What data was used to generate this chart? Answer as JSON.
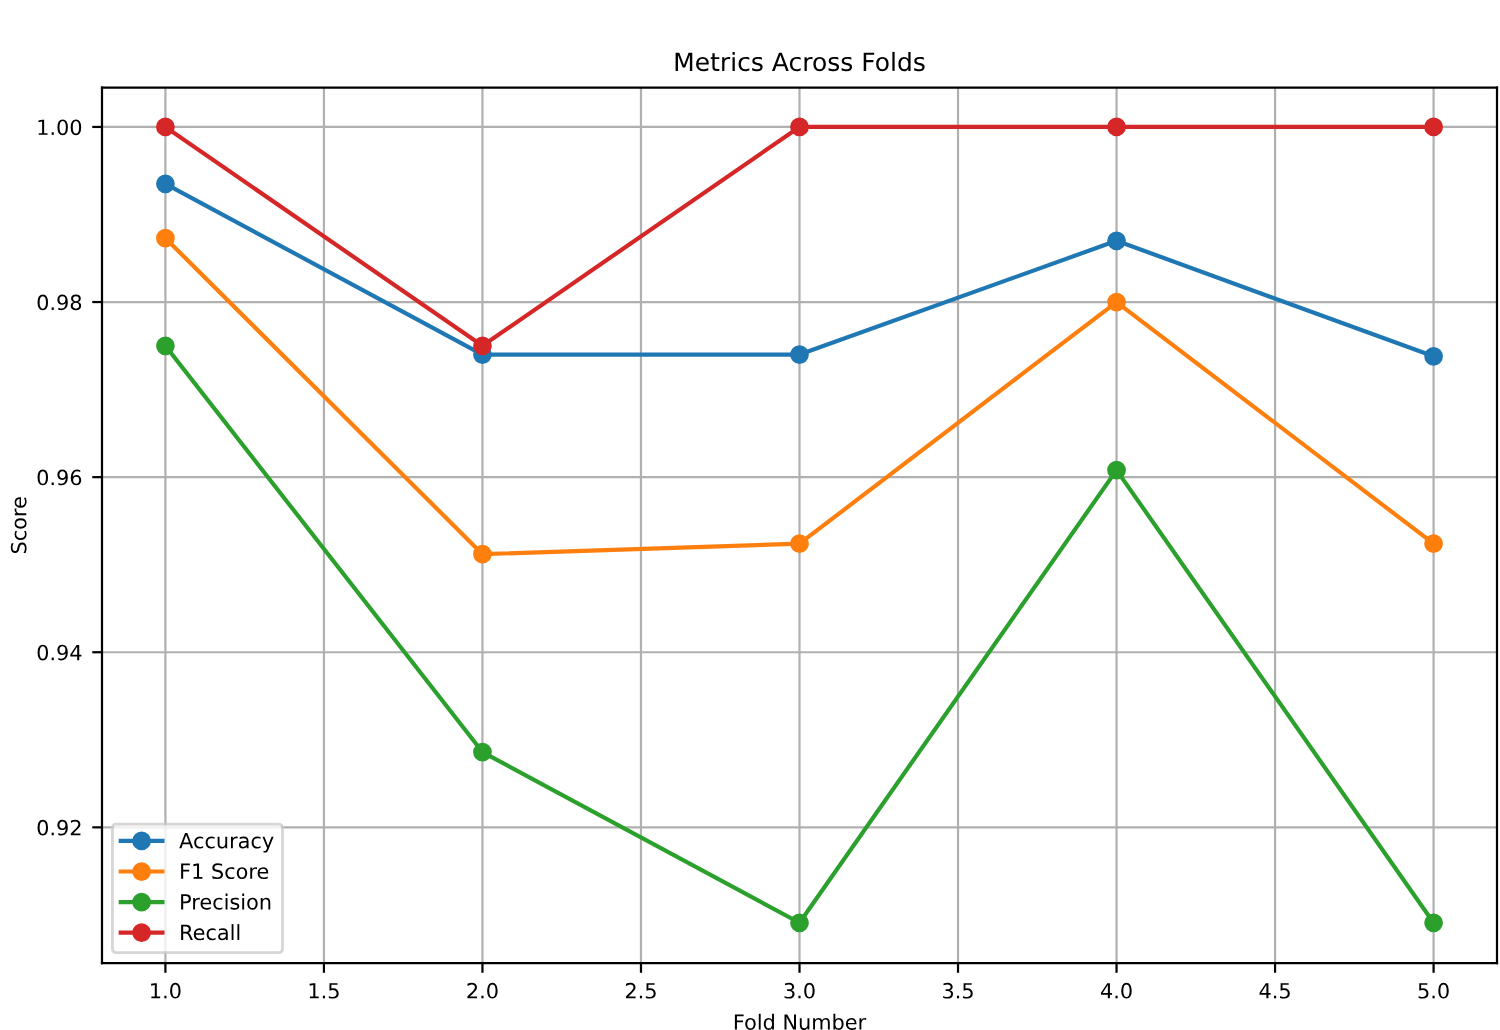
{
  "chart_data": {
    "type": "line",
    "title": "Metrics Across Folds",
    "xlabel": "Fold Number",
    "ylabel": "Score",
    "x": [
      1.0,
      2.0,
      3.0,
      4.0,
      5.0
    ],
    "series": [
      {
        "name": "Accuracy",
        "color": "#1f77b4",
        "values": [
          0.9935,
          0.974,
          0.974,
          0.987,
          0.9738
        ]
      },
      {
        "name": "F1 Score",
        "color": "#ff7f0e",
        "values": [
          0.9873,
          0.9512,
          0.9524,
          0.98,
          0.9524
        ]
      },
      {
        "name": "Precision",
        "color": "#2ca02c",
        "values": [
          0.975,
          0.9286,
          0.9091,
          0.9608,
          0.9091
        ]
      },
      {
        "name": "Recall",
        "color": "#d62728",
        "values": [
          1.0,
          0.975,
          1.0,
          1.0,
          1.0
        ]
      }
    ],
    "xlim": [
      0.8,
      5.2
    ],
    "xticks": [
      {
        "value": 1.0,
        "label": "1.0"
      },
      {
        "value": 1.5,
        "label": "1.5"
      },
      {
        "value": 2.0,
        "label": "2.0"
      },
      {
        "value": 2.5,
        "label": "2.5"
      },
      {
        "value": 3.0,
        "label": "3.0"
      },
      {
        "value": 3.5,
        "label": "3.5"
      },
      {
        "value": 4.0,
        "label": "4.0"
      },
      {
        "value": 4.5,
        "label": "4.5"
      },
      {
        "value": 5.0,
        "label": "5.0"
      }
    ],
    "ylim": [
      0.9045,
      1.0045
    ],
    "yticks": [
      {
        "value": 0.92,
        "label": "0.92"
      },
      {
        "value": 0.94,
        "label": "0.94"
      },
      {
        "value": 0.96,
        "label": "0.96"
      },
      {
        "value": 0.98,
        "label": "0.98"
      },
      {
        "value": 1.0,
        "label": "1.00"
      }
    ],
    "grid": true,
    "legend": "bottom left",
    "marker": "circle",
    "line_style": "solid"
  }
}
